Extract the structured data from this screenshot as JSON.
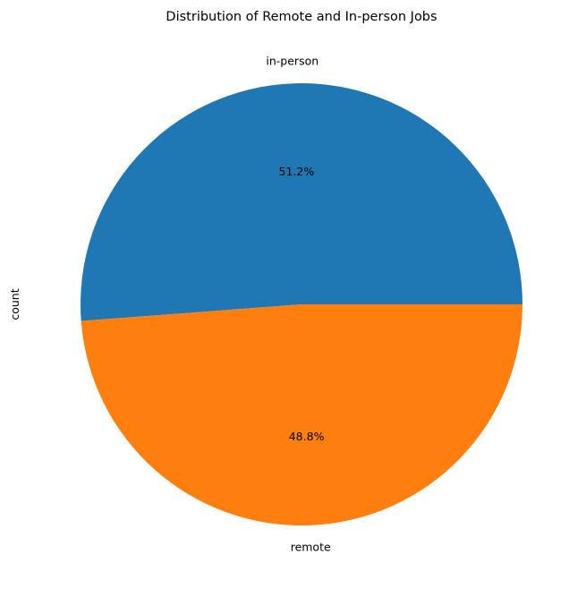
{
  "chart_data": {
    "type": "pie",
    "title": "Distribution of Remote and In-person Jobs",
    "ylabel": "count",
    "slices": [
      {
        "label": "in-person",
        "value": 51.2,
        "pct_label": "51.2%",
        "color": "#1f77b4"
      },
      {
        "label": "remote",
        "value": 48.8,
        "pct_label": "48.8%",
        "color": "#ff7f0e"
      }
    ],
    "start_angle_deg": 0,
    "direction": "counterclockwise"
  }
}
